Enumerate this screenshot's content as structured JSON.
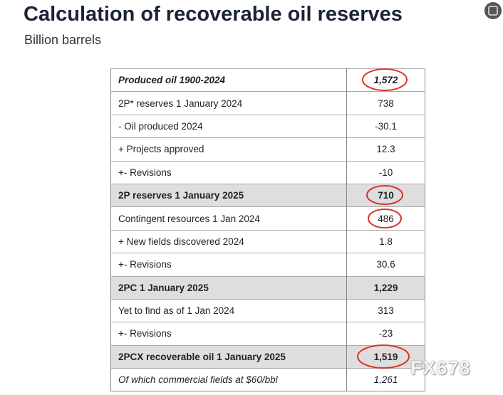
{
  "header": {
    "title": "Calculation of recoverable oil reserves",
    "subtitle": "Billion barrels"
  },
  "table": {
    "rows": [
      {
        "label": "Produced oil 1900-2024",
        "value": "1,572"
      },
      {
        "label": "2P* reserves 1 January 2024",
        "value": "738"
      },
      {
        "label": "- Oil produced 2024",
        "value": "-30.1"
      },
      {
        "label": "+ Projects approved",
        "value": "12.3"
      },
      {
        "label": "+- Revisions",
        "value": "-10"
      },
      {
        "label": "2P reserves 1 January 2025",
        "value": "710"
      },
      {
        "label": "Contingent resources 1 Jan 2024",
        "value": "486"
      },
      {
        "label": "+ New fields discovered 2024",
        "value": "1.8"
      },
      {
        "label": "+- Revisions",
        "value": "30.6"
      },
      {
        "label": "2PC 1 January 2025",
        "value": "1,229"
      },
      {
        "label": "Yet to find as of 1 Jan 2024",
        "value": "313"
      },
      {
        "label": "+- Revisions",
        "value": "-23"
      },
      {
        "label": "2PCX recoverable oil 1 January 2025",
        "value": "1,519"
      },
      {
        "label": "Of which commercial fields at $60/bbl",
        "value": "1,261"
      }
    ]
  },
  "watermark": "FX678"
}
